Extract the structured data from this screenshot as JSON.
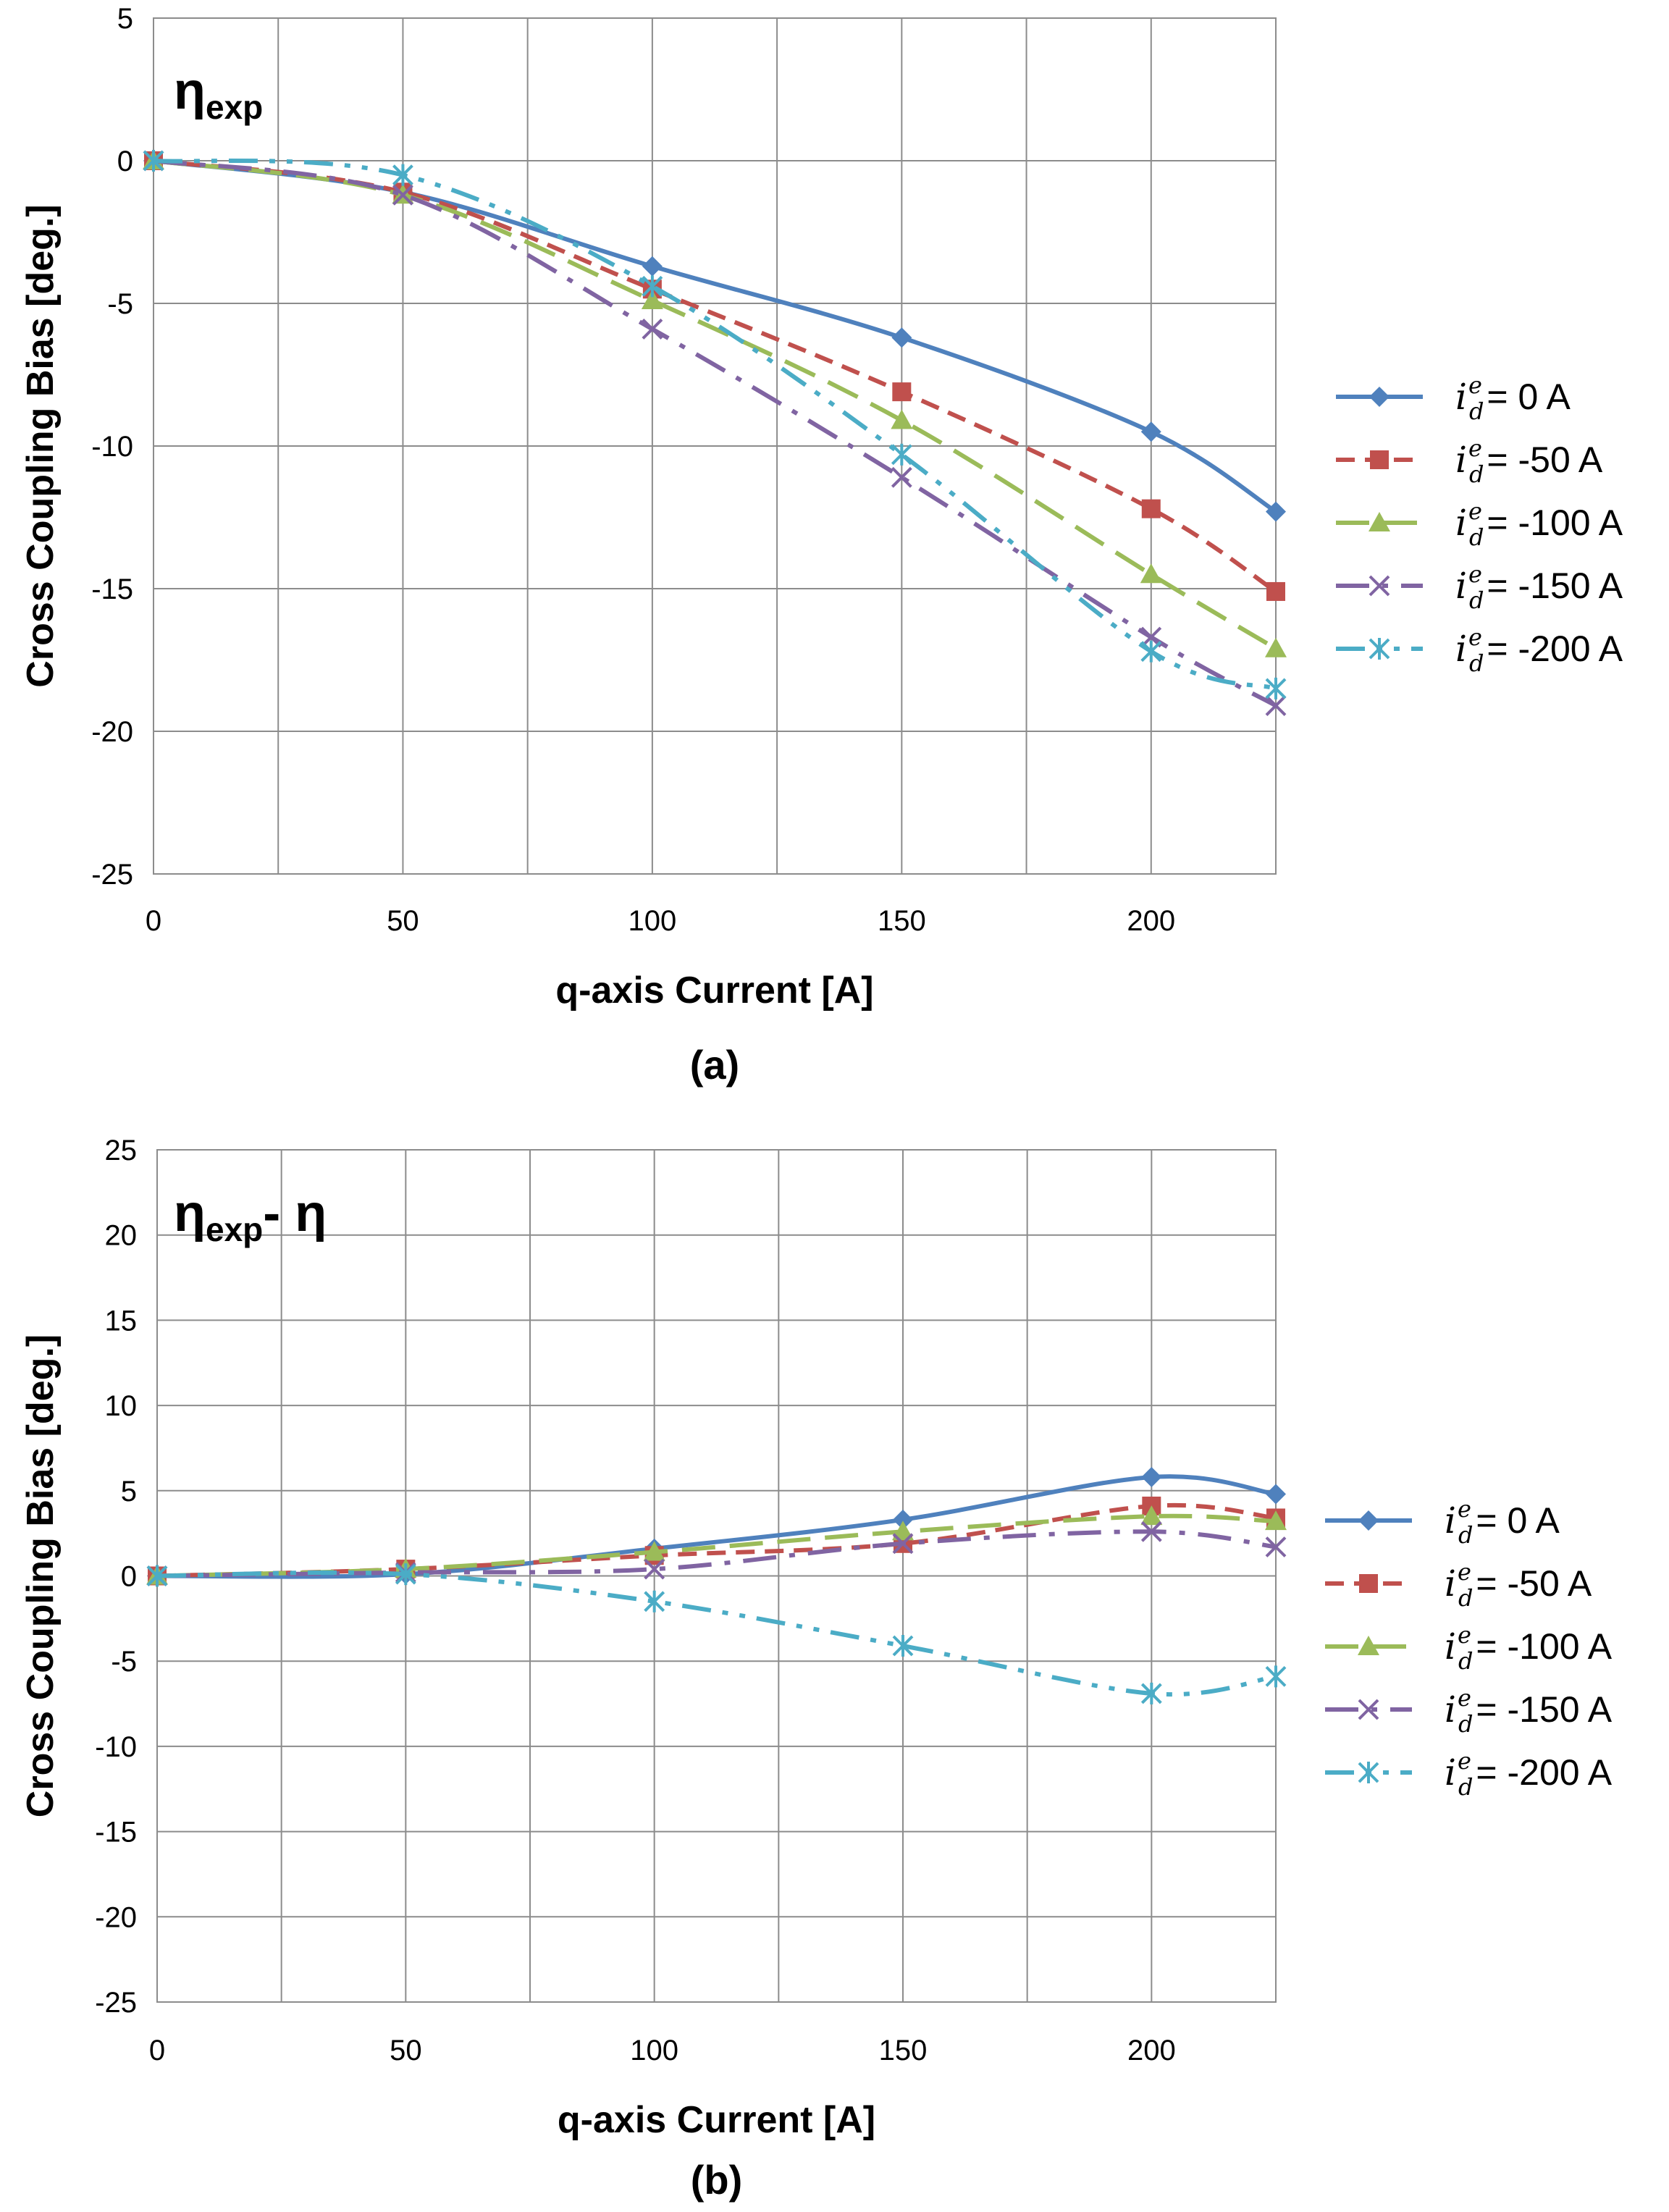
{
  "chart_data": [
    {
      "id": "a",
      "type": "line",
      "panel_label": "(a)",
      "annotation": {
        "symbol": "η",
        "subscript": "exp",
        "suffix": ""
      },
      "xlabel": "q-axis Current [A]",
      "ylabel": "Cross Coupling Bias [deg.]",
      "xlim": [
        0,
        225
      ],
      "ylim": [
        -25,
        5
      ],
      "xticks": [
        0,
        50,
        100,
        150,
        200
      ],
      "yticks": [
        5,
        0,
        -5,
        -10,
        -15,
        -20,
        -25
      ],
      "x_grid": [
        0,
        25,
        50,
        75,
        100,
        125,
        150,
        175,
        200,
        225
      ],
      "grid": true,
      "legend_position": "right",
      "x": [
        0,
        50,
        100,
        150,
        200,
        225
      ],
      "series": [
        {
          "name": "= 0 A",
          "legend_var": "i",
          "legend_sup": "e",
          "legend_sub": "d",
          "color": "#4f81bd",
          "dash": "solid",
          "marker": "diamond",
          "values": [
            0,
            -1.1,
            -3.7,
            -6.2,
            -9.5,
            -12.3
          ]
        },
        {
          "name": "= -50 A",
          "legend_var": "i",
          "legend_sup": "e",
          "legend_sub": "d",
          "color": "#c0504d",
          "dash": "dash",
          "marker": "square",
          "values": [
            0,
            -1.1,
            -4.5,
            -8.1,
            -12.2,
            -15.1
          ]
        },
        {
          "name": "= -100 A",
          "legend_var": "i",
          "legend_sup": "e",
          "legend_sub": "d",
          "color": "#9bbb59",
          "dash": "longdash",
          "marker": "triangle",
          "values": [
            0,
            -1.2,
            -4.9,
            -9.1,
            -14.5,
            -17.1
          ]
        },
        {
          "name": "= -150 A",
          "legend_var": "i",
          "legend_sup": "e",
          "legend_sub": "d",
          "color": "#8064a2",
          "dash": "dashdot",
          "marker": "x",
          "values": [
            0,
            -1.2,
            -5.9,
            -11.1,
            -16.7,
            -19.1
          ]
        },
        {
          "name": "= -200 A",
          "legend_var": "i",
          "legend_sup": "e",
          "legend_sub": "d",
          "color": "#4bacc6",
          "dash": "dashdotdot",
          "marker": "star",
          "values": [
            0,
            -0.5,
            -4.4,
            -10.3,
            -17.2,
            -18.5
          ]
        }
      ]
    },
    {
      "id": "b",
      "type": "line",
      "panel_label": "(b)",
      "annotation": {
        "symbol": "η",
        "subscript": "exp",
        "suffix": "- η"
      },
      "xlabel": "q-axis Current [A]",
      "ylabel": "Cross Coupling  Bias [deg.]",
      "xlim": [
        0,
        225
      ],
      "ylim": [
        -25,
        25
      ],
      "xticks": [
        0,
        50,
        100,
        150,
        200
      ],
      "yticks": [
        25,
        20,
        15,
        10,
        5,
        0,
        -5,
        -10,
        -15,
        -20,
        -25
      ],
      "x_grid": [
        0,
        25,
        50,
        75,
        100,
        125,
        150,
        175,
        200,
        225
      ],
      "grid": true,
      "legend_position": "right",
      "x": [
        0,
        50,
        100,
        150,
        200,
        225
      ],
      "series": [
        {
          "name": "= 0 A",
          "legend_var": "i",
          "legend_sup": "e",
          "legend_sub": "d",
          "color": "#4f81bd",
          "dash": "solid",
          "marker": "diamond",
          "values": [
            0,
            0.1,
            1.6,
            3.3,
            5.8,
            4.8
          ]
        },
        {
          "name": "= -50 A",
          "legend_var": "i",
          "legend_sup": "e",
          "legend_sub": "d",
          "color": "#c0504d",
          "dash": "dash",
          "marker": "square",
          "values": [
            0,
            0.4,
            1.2,
            1.9,
            4.1,
            3.4
          ]
        },
        {
          "name": "= -100 A",
          "legend_var": "i",
          "legend_sup": "e",
          "legend_sub": "d",
          "color": "#9bbb59",
          "dash": "longdash",
          "marker": "triangle",
          "values": [
            0,
            0.4,
            1.4,
            2.6,
            3.5,
            3.2
          ]
        },
        {
          "name": "= -150 A",
          "legend_var": "i",
          "legend_sup": "e",
          "legend_sub": "d",
          "color": "#8064a2",
          "dash": "dashdot",
          "marker": "x",
          "values": [
            0,
            0.2,
            0.4,
            1.9,
            2.6,
            1.7
          ]
        },
        {
          "name": "= -200 A",
          "legend_var": "i",
          "legend_sup": "e",
          "legend_sub": "d",
          "color": "#4bacc6",
          "dash": "dashdotdot",
          "marker": "star",
          "values": [
            0,
            0.1,
            -1.5,
            -4.1,
            -6.9,
            -5.9
          ]
        }
      ]
    }
  ]
}
